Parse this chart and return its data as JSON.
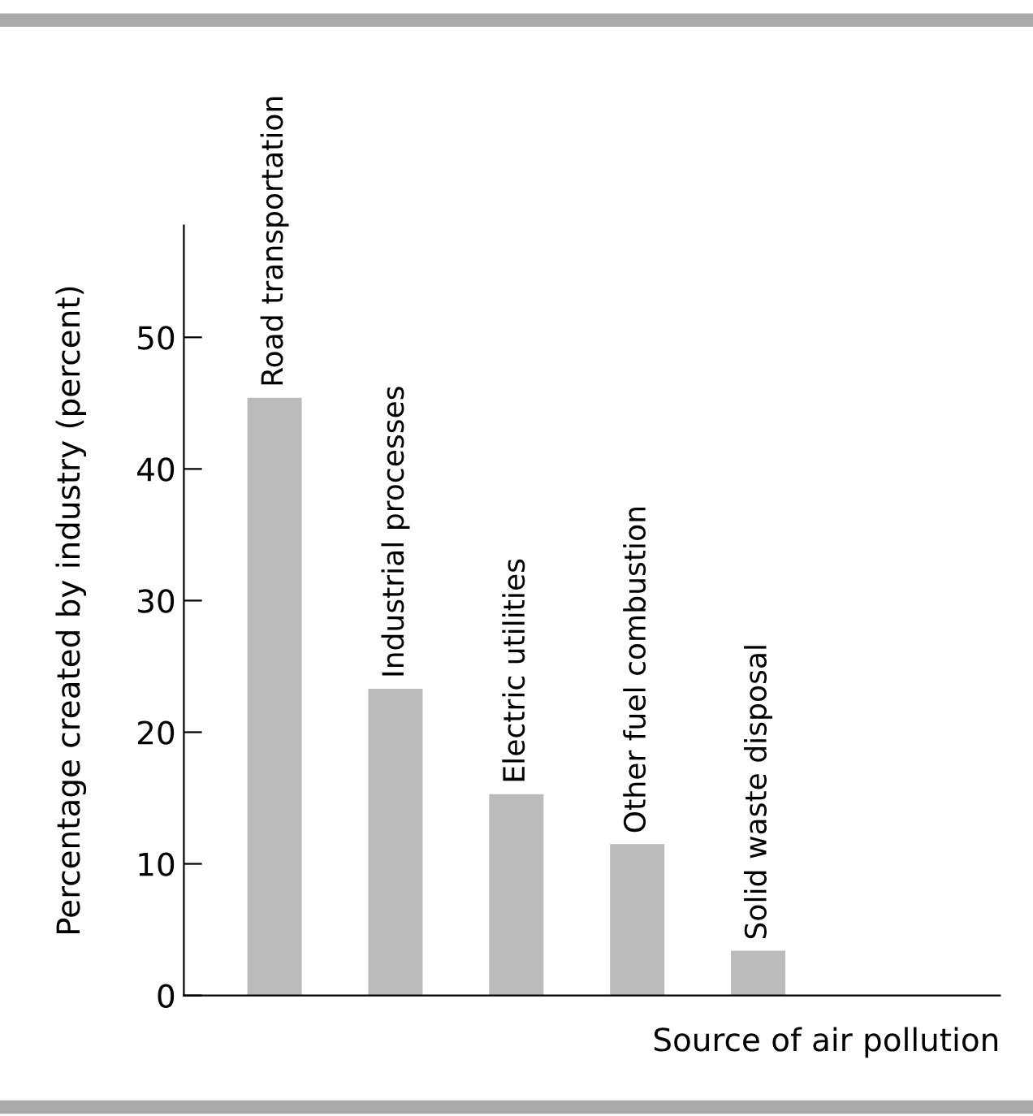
{
  "chart_data": {
    "type": "bar",
    "xlabel": "Source of air pollution",
    "ylabel": "Percentage created by industry (percent)",
    "categories": [
      "Road transportation",
      "Industrial processes",
      "Electric utilities",
      "Other fuel combustion",
      "Solid waste disposal"
    ],
    "values": [
      45.4,
      23.3,
      15.3,
      11.5,
      3.4
    ],
    "color": "#bbbbbb",
    "ylim": [
      0,
      58.5
    ],
    "yticks": [
      0,
      10,
      20,
      30,
      40,
      50
    ],
    "grid": false
  }
}
